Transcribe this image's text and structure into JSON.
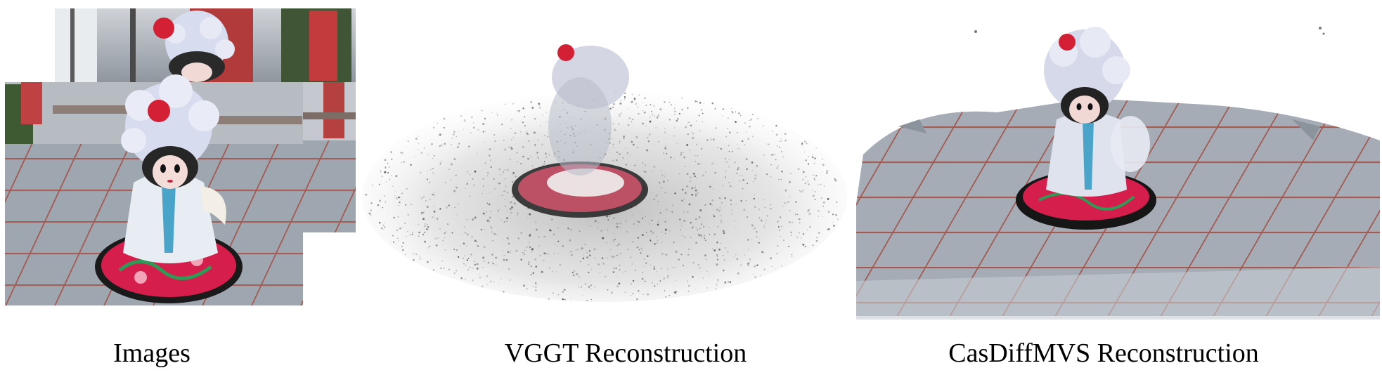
{
  "captions": {
    "images": "Images",
    "vggt": "VGGT Reconstruction",
    "casdiffmvs": "CasDiffMVS Reconstruction"
  },
  "panels": {
    "images": {
      "icon": "photo-stack-icon",
      "count": 3
    },
    "vggt": {
      "icon": "point-cloud-icon"
    },
    "casdiffmvs": {
      "icon": "dense-reconstruction-icon"
    }
  },
  "colors": {
    "background": "#ffffff",
    "caption": "#000000",
    "doll_headdress": "#d8dcef",
    "doll_pompom": "#d42035",
    "base_red": "#d61e4d",
    "base_black": "#1a1a1a",
    "pavement_gray": "#9aa3ad",
    "tile_lines": "#a2584f",
    "point_cloud": "#6b6b6b"
  }
}
